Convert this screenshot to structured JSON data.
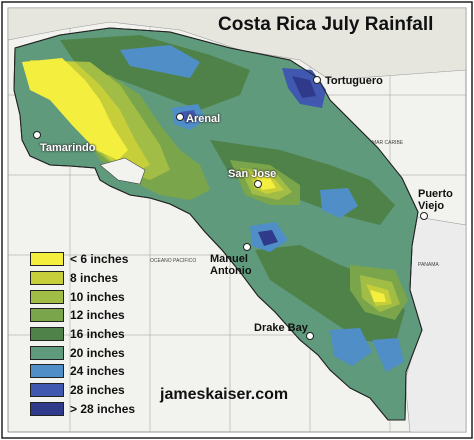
{
  "title": "Costa Rica July Rainfall",
  "website": "jameskaiser.com",
  "sea_labels": [
    "MAR CARIBE",
    "OCEANO PACIFICO",
    "PANAMA"
  ],
  "cities": [
    {
      "name": "Tortuguero",
      "style": "dark"
    },
    {
      "name": "Arenal",
      "style": "light"
    },
    {
      "name": "Tamarindo",
      "style": "light"
    },
    {
      "name": "San Jose",
      "style": "light"
    },
    {
      "name": "Puerto Viejo",
      "style": "dark"
    },
    {
      "name": "Manuel Antonio",
      "style": "dark"
    },
    {
      "name": "Drake Bay",
      "style": "dark"
    }
  ],
  "legend": [
    {
      "label": "< 6 inches",
      "color": "#f4ee3e"
    },
    {
      "label": "8 inches",
      "color": "#c6cf3a"
    },
    {
      "label": "10 inches",
      "color": "#a2bd45"
    },
    {
      "label": "12 inches",
      "color": "#7aa54a"
    },
    {
      "label": "16 inches",
      "color": "#4f8248"
    },
    {
      "label": "20 inches",
      "color": "#5f9a7c"
    },
    {
      "label": "24 inches",
      "color": "#4f8ec7"
    },
    {
      "label": "28 inches",
      "color": "#4058b0"
    },
    {
      "label": "> 28 inches",
      "color": "#2f3b8a"
    }
  ]
}
